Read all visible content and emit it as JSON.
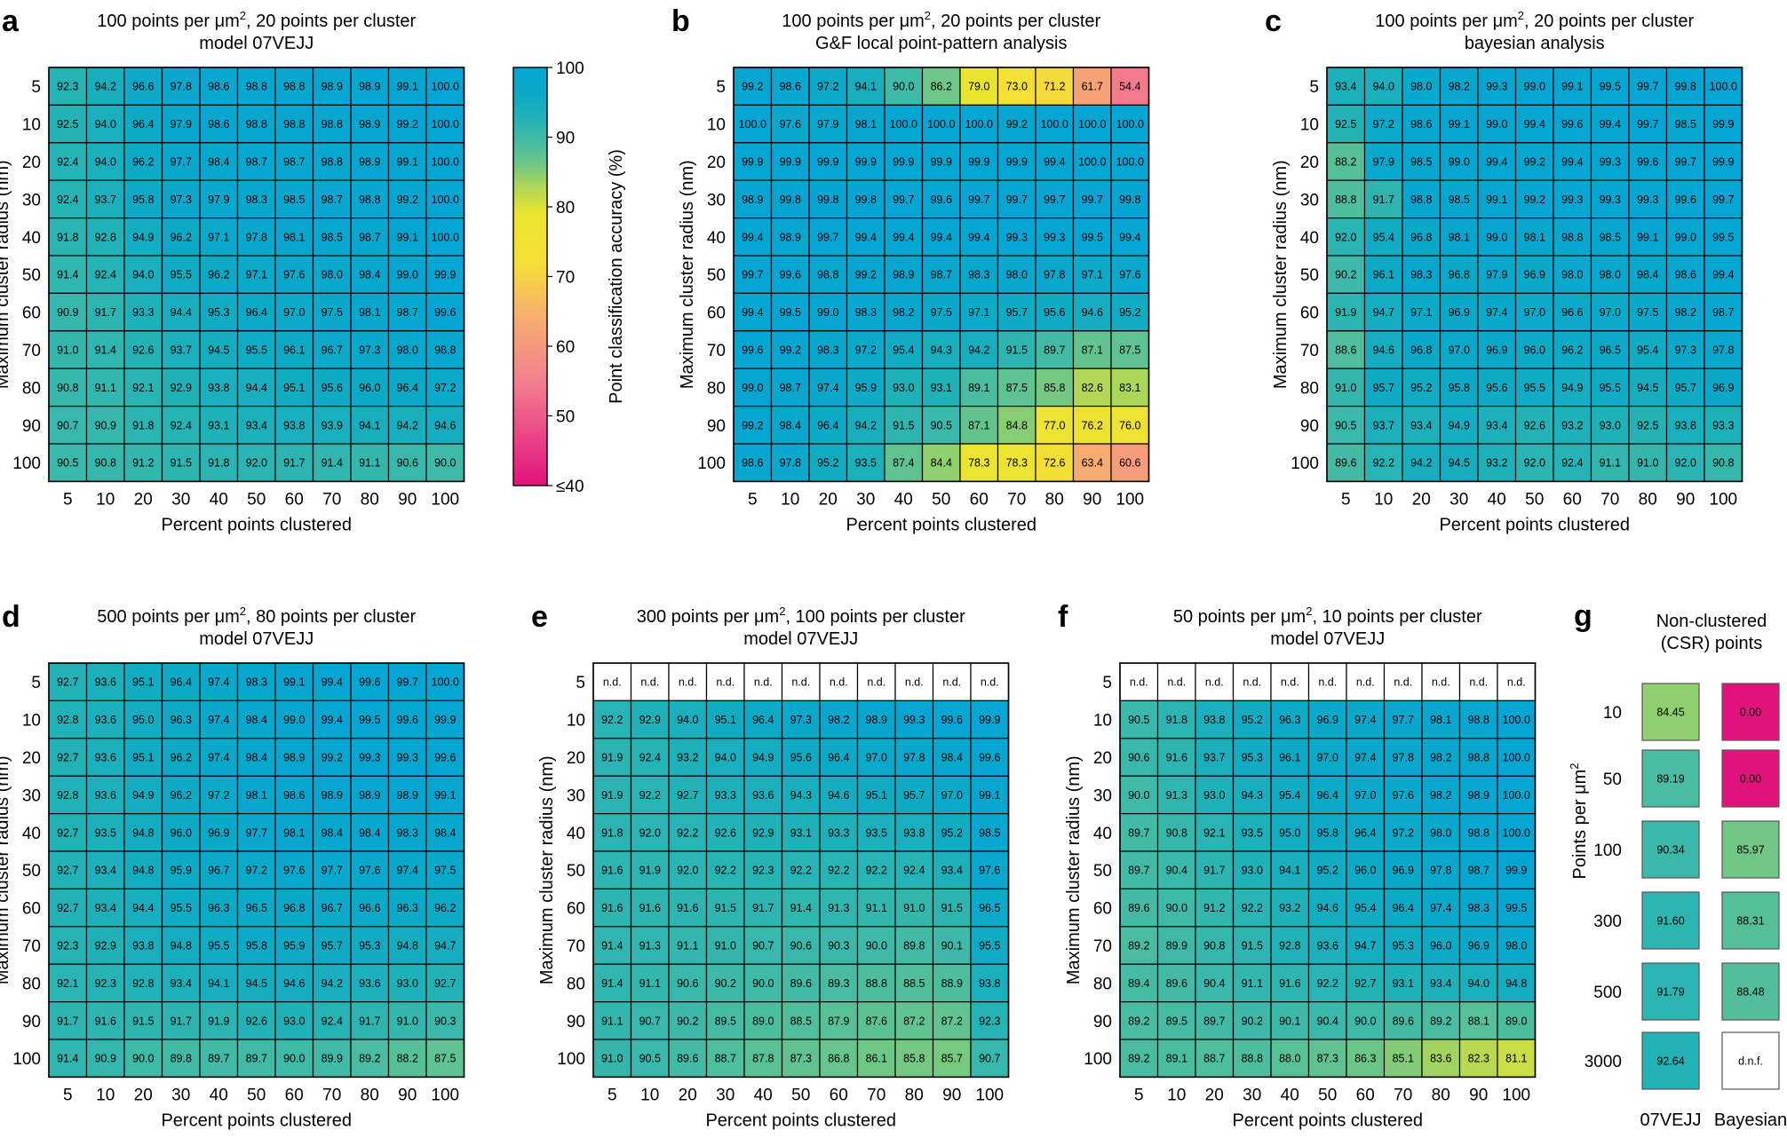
{
  "colorscale": {
    "stops": [
      {
        "v": 40,
        "c": "#e2127d"
      },
      {
        "v": 55,
        "c": "#f37f8f"
      },
      {
        "v": 65,
        "c": "#f7b36b"
      },
      {
        "v": 72,
        "c": "#f4df35"
      },
      {
        "v": 79,
        "c": "#eae42f"
      },
      {
        "v": 83,
        "c": "#acd658"
      },
      {
        "v": 86,
        "c": "#70c785"
      },
      {
        "v": 90,
        "c": "#3fb9a8"
      },
      {
        "v": 93,
        "c": "#1fb1b8"
      },
      {
        "v": 96,
        "c": "#0daac6"
      },
      {
        "v": 100,
        "c": "#05a5d4"
      }
    ],
    "na_color": "#ffffff"
  },
  "colorbar": {
    "label": "Point classification accuracy (%)",
    "ticks": [
      "100",
      "90",
      "80",
      "70",
      "60",
      "50",
      "≤40"
    ]
  },
  "chart_data": [
    {
      "id": "a",
      "type": "heatmap",
      "letter": "a",
      "title_pre": "100 points per μm",
      "title_sup": "2",
      "title_post": ", 20 points per cluster",
      "subtitle": "model 07VEJJ",
      "xlabel": "Percent points clustered",
      "ylabel": "Maximum cluster radius (nm)",
      "x": [
        "5",
        "10",
        "20",
        "30",
        "40",
        "50",
        "60",
        "70",
        "80",
        "90",
        "100"
      ],
      "y": [
        "5",
        "10",
        "20",
        "30",
        "40",
        "50",
        "60",
        "70",
        "80",
        "90",
        "100"
      ],
      "values": [
        [
          92.3,
          94.2,
          96.6,
          97.8,
          98.6,
          98.8,
          98.8,
          98.9,
          98.9,
          99.1,
          100.0
        ],
        [
          92.5,
          94.0,
          96.4,
          97.9,
          98.6,
          98.8,
          98.8,
          98.8,
          98.9,
          99.2,
          100.0
        ],
        [
          92.4,
          94.0,
          96.2,
          97.7,
          98.4,
          98.7,
          98.7,
          98.8,
          98.9,
          99.1,
          100.0
        ],
        [
          92.4,
          93.7,
          95.8,
          97.3,
          97.9,
          98.3,
          98.5,
          98.7,
          98.8,
          99.2,
          100.0
        ],
        [
          91.8,
          92.8,
          94.9,
          96.2,
          97.1,
          97.8,
          98.1,
          98.5,
          98.7,
          99.1,
          100.0
        ],
        [
          91.4,
          92.4,
          94.0,
          95.5,
          96.2,
          97.1,
          97.6,
          98.0,
          98.4,
          99.0,
          99.9
        ],
        [
          90.9,
          91.7,
          93.3,
          94.4,
          95.3,
          96.4,
          97.0,
          97.5,
          98.1,
          98.7,
          99.6
        ],
        [
          91.0,
          91.4,
          92.6,
          93.7,
          94.5,
          95.5,
          96.1,
          96.7,
          97.3,
          98.0,
          98.8
        ],
        [
          90.8,
          91.1,
          92.1,
          92.9,
          93.8,
          94.4,
          95.1,
          95.6,
          96.0,
          96.4,
          97.2
        ],
        [
          90.7,
          90.9,
          91.8,
          92.4,
          93.1,
          93.4,
          93.8,
          93.9,
          94.1,
          94.2,
          94.6
        ],
        [
          90.5,
          90.8,
          91.2,
          91.5,
          91.8,
          92.0,
          91.7,
          91.4,
          91.1,
          90.6,
          90.0
        ]
      ]
    },
    {
      "id": "b",
      "type": "heatmap",
      "letter": "b",
      "title_pre": "100 points per μm",
      "title_sup": "2",
      "title_post": ", 20 points per cluster",
      "subtitle": "G&F local point-pattern analysis",
      "xlabel": "Percent points clustered",
      "ylabel": "Maximum cluster radius (nm)",
      "x": [
        "5",
        "10",
        "20",
        "30",
        "40",
        "50",
        "60",
        "70",
        "80",
        "90",
        "100"
      ],
      "y": [
        "5",
        "10",
        "20",
        "30",
        "40",
        "50",
        "60",
        "70",
        "80",
        "90",
        "100"
      ],
      "values": [
        [
          99.2,
          98.6,
          97.2,
          94.1,
          90.0,
          86.2,
          79.0,
          73.0,
          71.2,
          61.7,
          54.4
        ],
        [
          100.0,
          97.6,
          97.9,
          98.1,
          100.0,
          100.0,
          100.0,
          99.2,
          100.0,
          100.0,
          100.0
        ],
        [
          99.9,
          99.9,
          99.9,
          99.9,
          99.9,
          99.9,
          99.9,
          99.9,
          99.4,
          100.0,
          100.0
        ],
        [
          98.9,
          99.8,
          99.8,
          99.8,
          99.7,
          99.6,
          99.7,
          99.7,
          99.7,
          99.7,
          99.8
        ],
        [
          99.4,
          98.9,
          99.7,
          99.4,
          99.4,
          99.4,
          99.4,
          99.3,
          99.3,
          99.5,
          99.4
        ],
        [
          99.7,
          99.6,
          98.8,
          99.2,
          98.9,
          98.7,
          98.3,
          98.0,
          97.8,
          97.1,
          97.6
        ],
        [
          99.4,
          99.5,
          99.0,
          98.3,
          98.2,
          97.5,
          97.1,
          95.7,
          95.6,
          94.6,
          95.2
        ],
        [
          99.6,
          99.2,
          98.3,
          97.2,
          95.4,
          94.3,
          94.2,
          91.5,
          89.7,
          87.1,
          87.5
        ],
        [
          99.0,
          98.7,
          97.4,
          95.9,
          93.0,
          93.1,
          89.1,
          87.5,
          85.8,
          82.6,
          83.1
        ],
        [
          99.2,
          98.4,
          96.4,
          94.2,
          91.5,
          90.5,
          87.1,
          84.8,
          77.0,
          76.2,
          76.0
        ],
        [
          98.6,
          97.8,
          95.2,
          93.5,
          87.4,
          84.4,
          78.3,
          78.3,
          72.6,
          63.4,
          60.6
        ]
      ]
    },
    {
      "id": "c",
      "type": "heatmap",
      "letter": "c",
      "title_pre": "100 points per μm",
      "title_sup": "2",
      "title_post": ", 20 points per cluster",
      "subtitle": "bayesian analysis",
      "xlabel": "Percent points clustered",
      "ylabel": "Maximum cluster radius (nm)",
      "x": [
        "5",
        "10",
        "20",
        "30",
        "40",
        "50",
        "60",
        "70",
        "80",
        "90",
        "100"
      ],
      "y": [
        "5",
        "10",
        "20",
        "30",
        "40",
        "50",
        "60",
        "70",
        "80",
        "90",
        "100"
      ],
      "values": [
        [
          93.4,
          94.0,
          98.0,
          98.2,
          99.3,
          99.0,
          99.1,
          99.5,
          99.7,
          99.8,
          100.0
        ],
        [
          92.5,
          97.2,
          98.6,
          99.1,
          99.0,
          99.4,
          99.6,
          99.4,
          99.7,
          98.5,
          99.9
        ],
        [
          88.2,
          97.9,
          98.5,
          99.0,
          99.4,
          99.2,
          99.4,
          99.3,
          99.6,
          99.7,
          99.9
        ],
        [
          88.8,
          91.7,
          98.8,
          98.5,
          99.1,
          99.2,
          99.3,
          99.3,
          99.3,
          99.6,
          99.7
        ],
        [
          92.0,
          95.4,
          96.8,
          98.1,
          99.0,
          98.1,
          98.8,
          98.5,
          99.1,
          99.0,
          99.5
        ],
        [
          90.2,
          96.1,
          98.3,
          96.8,
          97.9,
          96.9,
          98.0,
          98.0,
          98.4,
          98.6,
          99.4
        ],
        [
          91.9,
          94.7,
          97.1,
          96.9,
          97.4,
          97.0,
          96.6,
          97.0,
          97.5,
          98.2,
          98.7
        ],
        [
          88.6,
          94.6,
          96.8,
          97.0,
          96.9,
          96.0,
          96.2,
          96.5,
          95.4,
          97.3,
          97.8
        ],
        [
          91.0,
          95.7,
          95.2,
          95.8,
          95.6,
          95.5,
          94.9,
          95.5,
          94.5,
          95.7,
          96.9
        ],
        [
          90.5,
          93.7,
          93.4,
          94.9,
          93.4,
          92.6,
          93.2,
          93.0,
          92.5,
          93.8,
          93.3
        ],
        [
          89.6,
          92.2,
          94.2,
          94.5,
          93.2,
          92.0,
          92.4,
          91.1,
          91.0,
          92.0,
          90.8
        ]
      ]
    },
    {
      "id": "d",
      "type": "heatmap",
      "letter": "d",
      "title_pre": "500 points per μm",
      "title_sup": "2",
      "title_post": ", 80 points per cluster",
      "subtitle": "model 07VEJJ",
      "xlabel": "Percent points clustered",
      "ylabel": "Maximum cluster radius (nm)",
      "x": [
        "5",
        "10",
        "20",
        "30",
        "40",
        "50",
        "60",
        "70",
        "80",
        "90",
        "100"
      ],
      "y": [
        "5",
        "10",
        "20",
        "30",
        "40",
        "50",
        "60",
        "70",
        "80",
        "90",
        "100"
      ],
      "values": [
        [
          92.7,
          93.6,
          95.1,
          96.4,
          97.4,
          98.3,
          99.1,
          99.4,
          99.6,
          99.7,
          100.0
        ],
        [
          92.8,
          93.6,
          95.0,
          96.3,
          97.4,
          98.4,
          99.0,
          99.4,
          99.5,
          99.6,
          99.9
        ],
        [
          92.7,
          93.6,
          95.1,
          96.2,
          97.4,
          98.4,
          98.9,
          99.2,
          99.3,
          99.3,
          99.6
        ],
        [
          92.8,
          93.6,
          94.9,
          96.2,
          97.2,
          98.1,
          98.6,
          98.9,
          98.9,
          98.9,
          99.1
        ],
        [
          92.7,
          93.5,
          94.8,
          96.0,
          96.9,
          97.7,
          98.1,
          98.4,
          98.4,
          98.3,
          98.4
        ],
        [
          92.7,
          93.4,
          94.8,
          95.9,
          96.7,
          97.2,
          97.6,
          97.7,
          97.6,
          97.4,
          97.5
        ],
        [
          92.7,
          93.4,
          94.4,
          95.5,
          96.3,
          96.5,
          96.8,
          96.7,
          96.6,
          96.3,
          96.2
        ],
        [
          92.3,
          92.9,
          93.8,
          94.8,
          95.5,
          95.8,
          95.9,
          95.7,
          95.3,
          94.8,
          94.7
        ],
        [
          92.1,
          92.3,
          92.8,
          93.4,
          94.1,
          94.5,
          94.6,
          94.2,
          93.6,
          93.0,
          92.7
        ],
        [
          91.7,
          91.6,
          91.5,
          91.7,
          91.9,
          92.6,
          93.0,
          92.4,
          91.7,
          91.0,
          90.3
        ],
        [
          91.4,
          90.9,
          90.0,
          89.8,
          89.7,
          89.7,
          90.0,
          89.9,
          89.2,
          88.2,
          87.5
        ]
      ]
    },
    {
      "id": "e",
      "type": "heatmap",
      "letter": "e",
      "title_pre": "300 points per μm",
      "title_sup": "2",
      "title_post": ", 100 points per cluster",
      "subtitle": "model 07VEJJ",
      "xlabel": "Percent points clustered",
      "ylabel": "Maximum cluster radius (nm)",
      "x": [
        "5",
        "10",
        "20",
        "30",
        "40",
        "50",
        "60",
        "70",
        "80",
        "90",
        "100"
      ],
      "y": [
        "5",
        "10",
        "20",
        "30",
        "40",
        "50",
        "60",
        "70",
        "80",
        "90",
        "100"
      ],
      "values": [
        [
          "n.d.",
          "n.d.",
          "n.d.",
          "n.d.",
          "n.d.",
          "n.d.",
          "n.d.",
          "n.d.",
          "n.d.",
          "n.d.",
          "n.d."
        ],
        [
          92.2,
          92.9,
          94.0,
          95.1,
          96.4,
          97.3,
          98.2,
          98.9,
          99.3,
          99.6,
          99.9
        ],
        [
          91.9,
          92.4,
          93.2,
          94.0,
          94.9,
          95.6,
          96.4,
          97.0,
          97.8,
          98.4,
          99.6
        ],
        [
          91.9,
          92.2,
          92.7,
          93.3,
          93.6,
          94.3,
          94.6,
          95.1,
          95.7,
          97.0,
          99.1
        ],
        [
          91.8,
          92.0,
          92.2,
          92.6,
          92.9,
          93.1,
          93.3,
          93.5,
          93.8,
          95.2,
          98.5
        ],
        [
          91.6,
          91.9,
          92.0,
          92.2,
          92.3,
          92.2,
          92.2,
          92.2,
          92.4,
          93.4,
          97.6
        ],
        [
          91.6,
          91.6,
          91.6,
          91.5,
          91.7,
          91.4,
          91.3,
          91.1,
          91.0,
          91.5,
          96.5
        ],
        [
          91.4,
          91.3,
          91.1,
          91.0,
          90.7,
          90.6,
          90.3,
          90.0,
          89.8,
          90.1,
          95.5
        ],
        [
          91.4,
          91.1,
          90.6,
          90.2,
          90.0,
          89.6,
          89.3,
          88.8,
          88.5,
          88.9,
          93.8
        ],
        [
          91.1,
          90.7,
          90.2,
          89.5,
          89.0,
          88.5,
          87.9,
          87.6,
          87.2,
          87.2,
          92.3
        ],
        [
          91.0,
          90.5,
          89.6,
          88.7,
          87.8,
          87.3,
          86.8,
          86.1,
          85.8,
          85.7,
          90.7
        ]
      ]
    },
    {
      "id": "f",
      "type": "heatmap",
      "letter": "f",
      "title_pre": "50 points per μm",
      "title_sup": "2",
      "title_post": ", 10 points per cluster",
      "subtitle": "model 07VEJJ",
      "xlabel": "Percent points clustered",
      "ylabel": "Maximum cluster radius (nm)",
      "x": [
        "5",
        "10",
        "20",
        "30",
        "40",
        "50",
        "60",
        "70",
        "80",
        "90",
        "100"
      ],
      "y": [
        "5",
        "10",
        "20",
        "30",
        "40",
        "50",
        "60",
        "70",
        "80",
        "90",
        "100"
      ],
      "values": [
        [
          "n.d.",
          "n.d.",
          "n.d.",
          "n.d.",
          "n.d.",
          "n.d.",
          "n.d.",
          "n.d.",
          "n.d.",
          "n.d.",
          "n.d."
        ],
        [
          90.5,
          91.8,
          93.8,
          95.2,
          96.3,
          96.9,
          97.4,
          97.7,
          98.1,
          98.8,
          100.0
        ],
        [
          90.6,
          91.6,
          93.7,
          95.3,
          96.1,
          97.0,
          97.4,
          97.8,
          98.2,
          98.8,
          100.0
        ],
        [
          90.0,
          91.3,
          93.0,
          94.3,
          95.4,
          96.4,
          97.0,
          97.6,
          98.2,
          98.9,
          100.0
        ],
        [
          89.7,
          90.8,
          92.1,
          93.5,
          95.0,
          95.8,
          96.4,
          97.2,
          98.0,
          98.8,
          100.0
        ],
        [
          89.7,
          90.4,
          91.7,
          93.0,
          94.1,
          95.2,
          96.0,
          96.9,
          97.8,
          98.7,
          99.9
        ],
        [
          89.6,
          90.0,
          91.2,
          92.2,
          93.2,
          94.6,
          95.4,
          96.4,
          97.4,
          98.3,
          99.5
        ],
        [
          89.2,
          89.9,
          90.8,
          91.5,
          92.8,
          93.6,
          94.7,
          95.3,
          96.0,
          96.9,
          98.0
        ],
        [
          89.4,
          89.6,
          90.4,
          91.1,
          91.6,
          92.2,
          92.7,
          93.1,
          93.4,
          94.0,
          94.8
        ],
        [
          89.2,
          89.5,
          89.7,
          90.2,
          90.1,
          90.4,
          90.0,
          89.6,
          89.2,
          88.1,
          89.0
        ],
        [
          89.2,
          89.1,
          88.7,
          88.8,
          88.0,
          87.3,
          86.3,
          85.1,
          83.6,
          82.3,
          81.1
        ]
      ]
    },
    {
      "id": "g",
      "type": "heatmap",
      "letter": "g",
      "title_line1": "Non-clustered",
      "title_line2": "(CSR) points",
      "ylabel_pre": "Points per μm",
      "ylabel_sup": "2",
      "x": [
        "07VEJJ",
        "Bayesian"
      ],
      "y": [
        "10",
        "50",
        "100",
        "300",
        "500",
        "3000"
      ],
      "values": [
        [
          84.45,
          0.0
        ],
        [
          89.19,
          0.0
        ],
        [
          90.34,
          85.97
        ],
        [
          91.6,
          88.31
        ],
        [
          91.79,
          88.48
        ],
        [
          92.64,
          "d.n.f."
        ]
      ]
    }
  ]
}
